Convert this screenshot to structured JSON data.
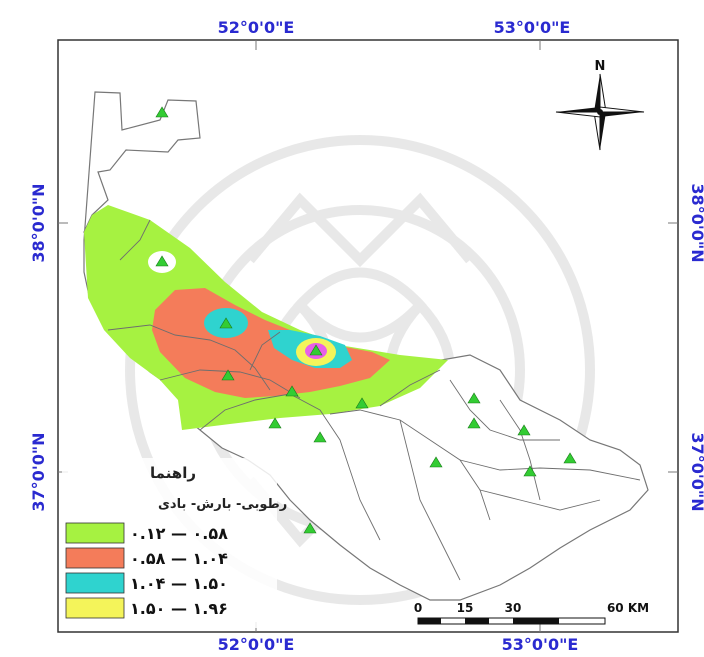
{
  "map": {
    "top_axis_labels": [
      "52°0'0\"E",
      "53°0'0\"E"
    ],
    "bottom_axis_labels": [
      "52°0'0\"E",
      "53°0'0\"E"
    ],
    "left_axis_labels": [
      "38°0'0\"N",
      "37°0'0\"N"
    ],
    "right_axis_labels": [
      "38°0'0\"N",
      "37°0'0\"N"
    ],
    "north_label": "N"
  },
  "legend": {
    "title": "راهنما",
    "subtitle": "رطوبی- بارش- بادی",
    "classes": [
      {
        "label": "۰.۱۲ — ۰.۵۸",
        "color": "#a6f241"
      },
      {
        "label": "۰.۵۸ — ۱.۰۴",
        "color": "#f47c5a"
      },
      {
        "label": "۱.۰۴ — ۱.۵۰",
        "color": "#2fd3cf"
      },
      {
        "label": "۱.۵۰ — ۱.۹۶",
        "color": "#f4f45a"
      }
    ]
  },
  "scale_bar": {
    "ticks": [
      "0",
      "15",
      "30",
      "60 KM"
    ]
  },
  "colors": {
    "station_marker": "#33cc33",
    "accent_magenta": "#e860e8",
    "coord_text": "#2a2ad0"
  }
}
